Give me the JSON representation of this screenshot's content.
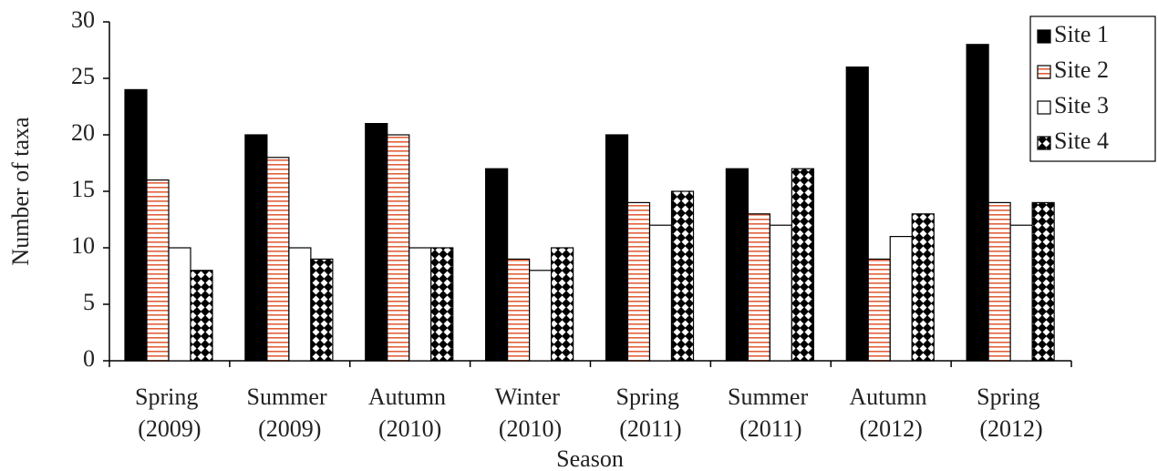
{
  "chart_data": {
    "type": "bar",
    "xlabel": "Season",
    "ylabel": "Number of taxa",
    "categories": [
      "Spring (2009)",
      "Summer (2009)",
      "Autumn (2010)",
      "Winter (2010)",
      "Spring (2011)",
      "Summer (2011)",
      "Autumn (2012)",
      "Spring (2012)"
    ],
    "series": [
      {
        "name": "Site 1",
        "color": "#000000",
        "pattern": "solid",
        "values": [
          24,
          20,
          21,
          17,
          20,
          17,
          26,
          28
        ]
      },
      {
        "name": "Site 2",
        "color": "#e0603a",
        "pattern": "hstripes",
        "values": [
          16,
          18,
          20,
          9,
          14,
          13,
          9,
          14
        ]
      },
      {
        "name": "Site 3",
        "color": "#ffffff",
        "pattern": "none",
        "values": [
          10,
          10,
          10,
          8,
          12,
          12,
          11,
          12
        ]
      },
      {
        "name": "Site 4",
        "color": "#000000",
        "pattern": "diamonds",
        "values": [
          8,
          9,
          10,
          10,
          15,
          17,
          13,
          14
        ]
      }
    ],
    "ylim": [
      0,
      30
    ],
    "yticks": [
      0,
      5,
      10,
      15,
      20,
      25,
      30
    ],
    "grid": false,
    "legend": "upper right"
  }
}
